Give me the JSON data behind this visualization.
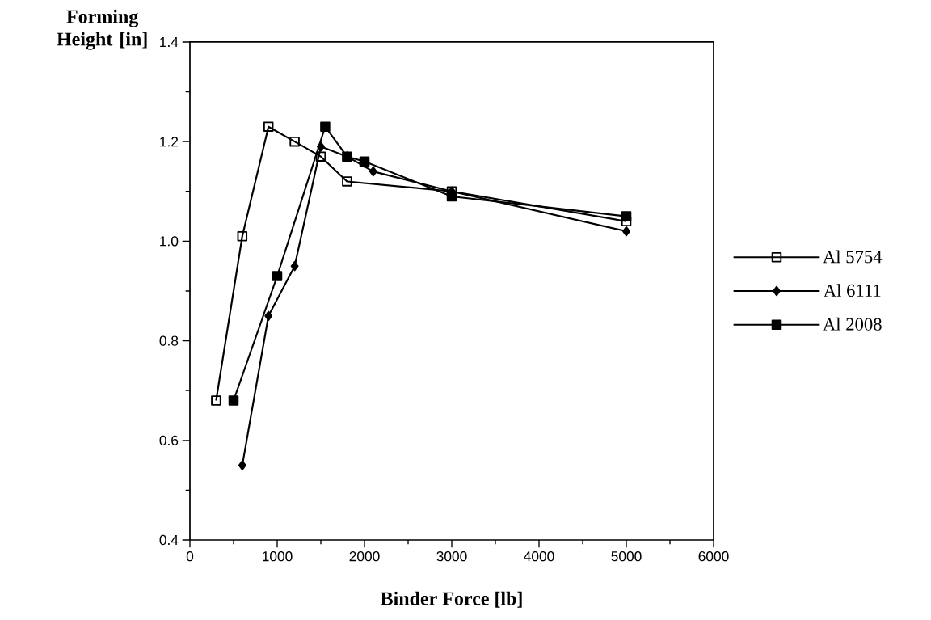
{
  "chart_data": {
    "type": "line",
    "xlabel": "Binder Force [lb]",
    "ylabel": "Forming Height [in]",
    "xlim": [
      0,
      6000
    ],
    "xticks": [
      0,
      1000,
      2000,
      3000,
      4000,
      5000,
      6000
    ],
    "ylim": [
      0.4,
      1.4
    ],
    "yticks": [
      {
        "value": 0.4,
        "label": "0.4"
      },
      {
        "value": 0.6,
        "label": "0.6"
      },
      {
        "value": 0.8,
        "label": "0.8"
      },
      {
        "value": 1.0,
        "label": "1.0"
      },
      {
        "value": 1.2,
        "label": "1.2"
      },
      {
        "value": 1.4,
        "label": "1.4"
      }
    ],
    "grid": false,
    "legend": "right",
    "line_style": "solid",
    "series": [
      {
        "name": "Al 5754",
        "color": "#000000",
        "marker": "square",
        "x": [
          300,
          600,
          900,
          1200,
          1500,
          1800,
          3000,
          5000
        ],
        "values": [
          0.68,
          1.01,
          1.23,
          1.2,
          1.17,
          1.12,
          1.1,
          1.04
        ]
      },
      {
        "name": "Al 6111",
        "color": "#000000",
        "marker": "diamond",
        "x": [
          600,
          900,
          1200,
          1500,
          1800,
          2100,
          3000,
          5000
        ],
        "values": [
          0.55,
          0.85,
          0.95,
          1.19,
          1.17,
          1.14,
          1.1,
          1.02
        ]
      },
      {
        "name": "Al 2008",
        "color": "#000000",
        "marker": "square",
        "x": [
          500,
          1000,
          1550,
          1800,
          2000,
          3000,
          5000
        ],
        "values": [
          0.68,
          0.93,
          1.23,
          1.17,
          1.16,
          1.09,
          1.05
        ]
      }
    ]
  }
}
